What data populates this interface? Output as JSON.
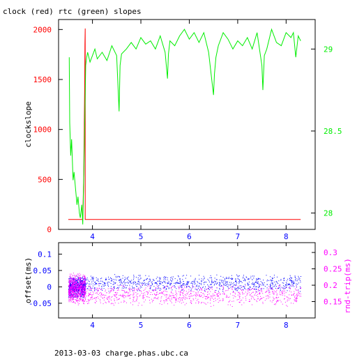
{
  "colors": {
    "clock": "#ff0000",
    "rtc": "#00ee00",
    "offset": "#0000ff",
    "rtt": "#ff00ff",
    "axis": "#000000"
  },
  "footer": "2013-03-03 charge.phas.ubc.ca",
  "chart_data": [
    {
      "type": "line",
      "title": "clock (red) rtc (green) slopes",
      "xlabel": "",
      "ylabel": "clockslope",
      "xlim": [
        3.3,
        8.6
      ],
      "ylim": [
        0,
        2100
      ],
      "y2lim": [
        27.9,
        29.18
      ],
      "x_ticks": [
        "4",
        "5",
        "6",
        "7",
        "8"
      ],
      "y_ticks": [
        "0",
        "500",
        "1000",
        "1500",
        "2000"
      ],
      "y2_ticks": [
        "28",
        "28.5",
        "29"
      ],
      "grid": false,
      "series": [
        {
          "role": "clock",
          "axis": "left",
          "x": [
            3.5,
            3.8,
            3.82,
            3.84,
            3.845,
            3.85,
            3.85,
            8.3
          ],
          "y": [
            100,
            100,
            550,
            1450,
            1850,
            2010,
            100,
            100
          ]
        },
        {
          "role": "rtc",
          "axis": "right",
          "x": [
            3.52,
            3.53,
            3.55,
            3.57,
            3.6,
            3.62,
            3.65,
            3.68,
            3.7,
            3.73,
            3.75,
            3.78,
            3.8,
            3.82,
            3.84,
            3.86,
            3.88,
            3.9,
            3.95,
            4.0,
            4.05,
            4.1,
            4.2,
            4.3,
            4.4,
            4.5,
            4.55,
            4.57,
            4.6,
            4.7,
            4.8,
            4.9,
            5.0,
            5.1,
            5.2,
            5.3,
            5.4,
            5.5,
            5.55,
            5.57,
            5.6,
            5.7,
            5.8,
            5.9,
            6.0,
            6.1,
            6.2,
            6.3,
            6.4,
            6.5,
            6.52,
            6.55,
            6.6,
            6.7,
            6.8,
            6.9,
            7.0,
            7.1,
            7.2,
            7.3,
            7.4,
            7.5,
            7.52,
            7.55,
            7.6,
            7.7,
            7.8,
            7.9,
            8.0,
            8.1,
            8.15,
            8.2,
            8.25,
            8.3
          ],
          "y": [
            28.95,
            28.55,
            28.35,
            28.45,
            28.2,
            28.25,
            28.15,
            28.05,
            28.1,
            28.0,
            27.97,
            28.05,
            27.93,
            28.2,
            28.55,
            28.9,
            28.95,
            28.98,
            28.92,
            28.96,
            29.0,
            28.94,
            28.98,
            28.93,
            29.02,
            28.96,
            28.62,
            28.9,
            28.97,
            29.0,
            29.04,
            29.0,
            29.07,
            29.03,
            29.05,
            29.0,
            29.08,
            28.98,
            28.82,
            28.97,
            29.05,
            29.02,
            29.08,
            29.12,
            29.06,
            29.1,
            29.04,
            29.1,
            28.98,
            28.72,
            28.85,
            28.95,
            29.02,
            29.1,
            29.06,
            29.0,
            29.05,
            29.02,
            29.07,
            29.0,
            29.1,
            28.9,
            28.75,
            28.96,
            29.0,
            29.12,
            29.04,
            29.02,
            29.1,
            29.07,
            29.1,
            28.95,
            29.08,
            29.05
          ]
        }
      ]
    },
    {
      "type": "scatter",
      "xlim": [
        3.3,
        8.6
      ],
      "ylim": [
        -0.095,
        0.135
      ],
      "y2lim": [
        0.1,
        0.33
      ],
      "ylabel": "offset(ms)",
      "y2label": "rnd-trip(ms)",
      "x_ticks": [
        "4",
        "5",
        "6",
        "7",
        "8"
      ],
      "y_ticks": [
        "0.1",
        "0.05",
        "0",
        "-0.05"
      ],
      "y2_ticks": [
        "0.3",
        "0.25",
        "0.2",
        "0.15"
      ],
      "grid": false,
      "series": [
        {
          "role": "offset",
          "axis": "left",
          "description_of_distribution": "dense 3.5-3.85 band ±0.035; sparse thereafter around 0.00 to 0.02 with spread ±0.03",
          "dense_region": {
            "x": [
              3.5,
              3.85
            ],
            "center": 0.0,
            "spread": 0.035
          },
          "sparse_region": {
            "x": [
              3.85,
              8.3
            ],
            "center": 0.012,
            "spread": 0.028
          }
        },
        {
          "role": "rtt",
          "axis": "right",
          "dense_region": {
            "x": [
              3.5,
              3.85
            ],
            "center": 0.19,
            "spread": 0.05
          },
          "sparse_region": {
            "x": [
              3.85,
              8.3
            ],
            "center": 0.17,
            "spread": 0.035
          }
        }
      ]
    }
  ]
}
